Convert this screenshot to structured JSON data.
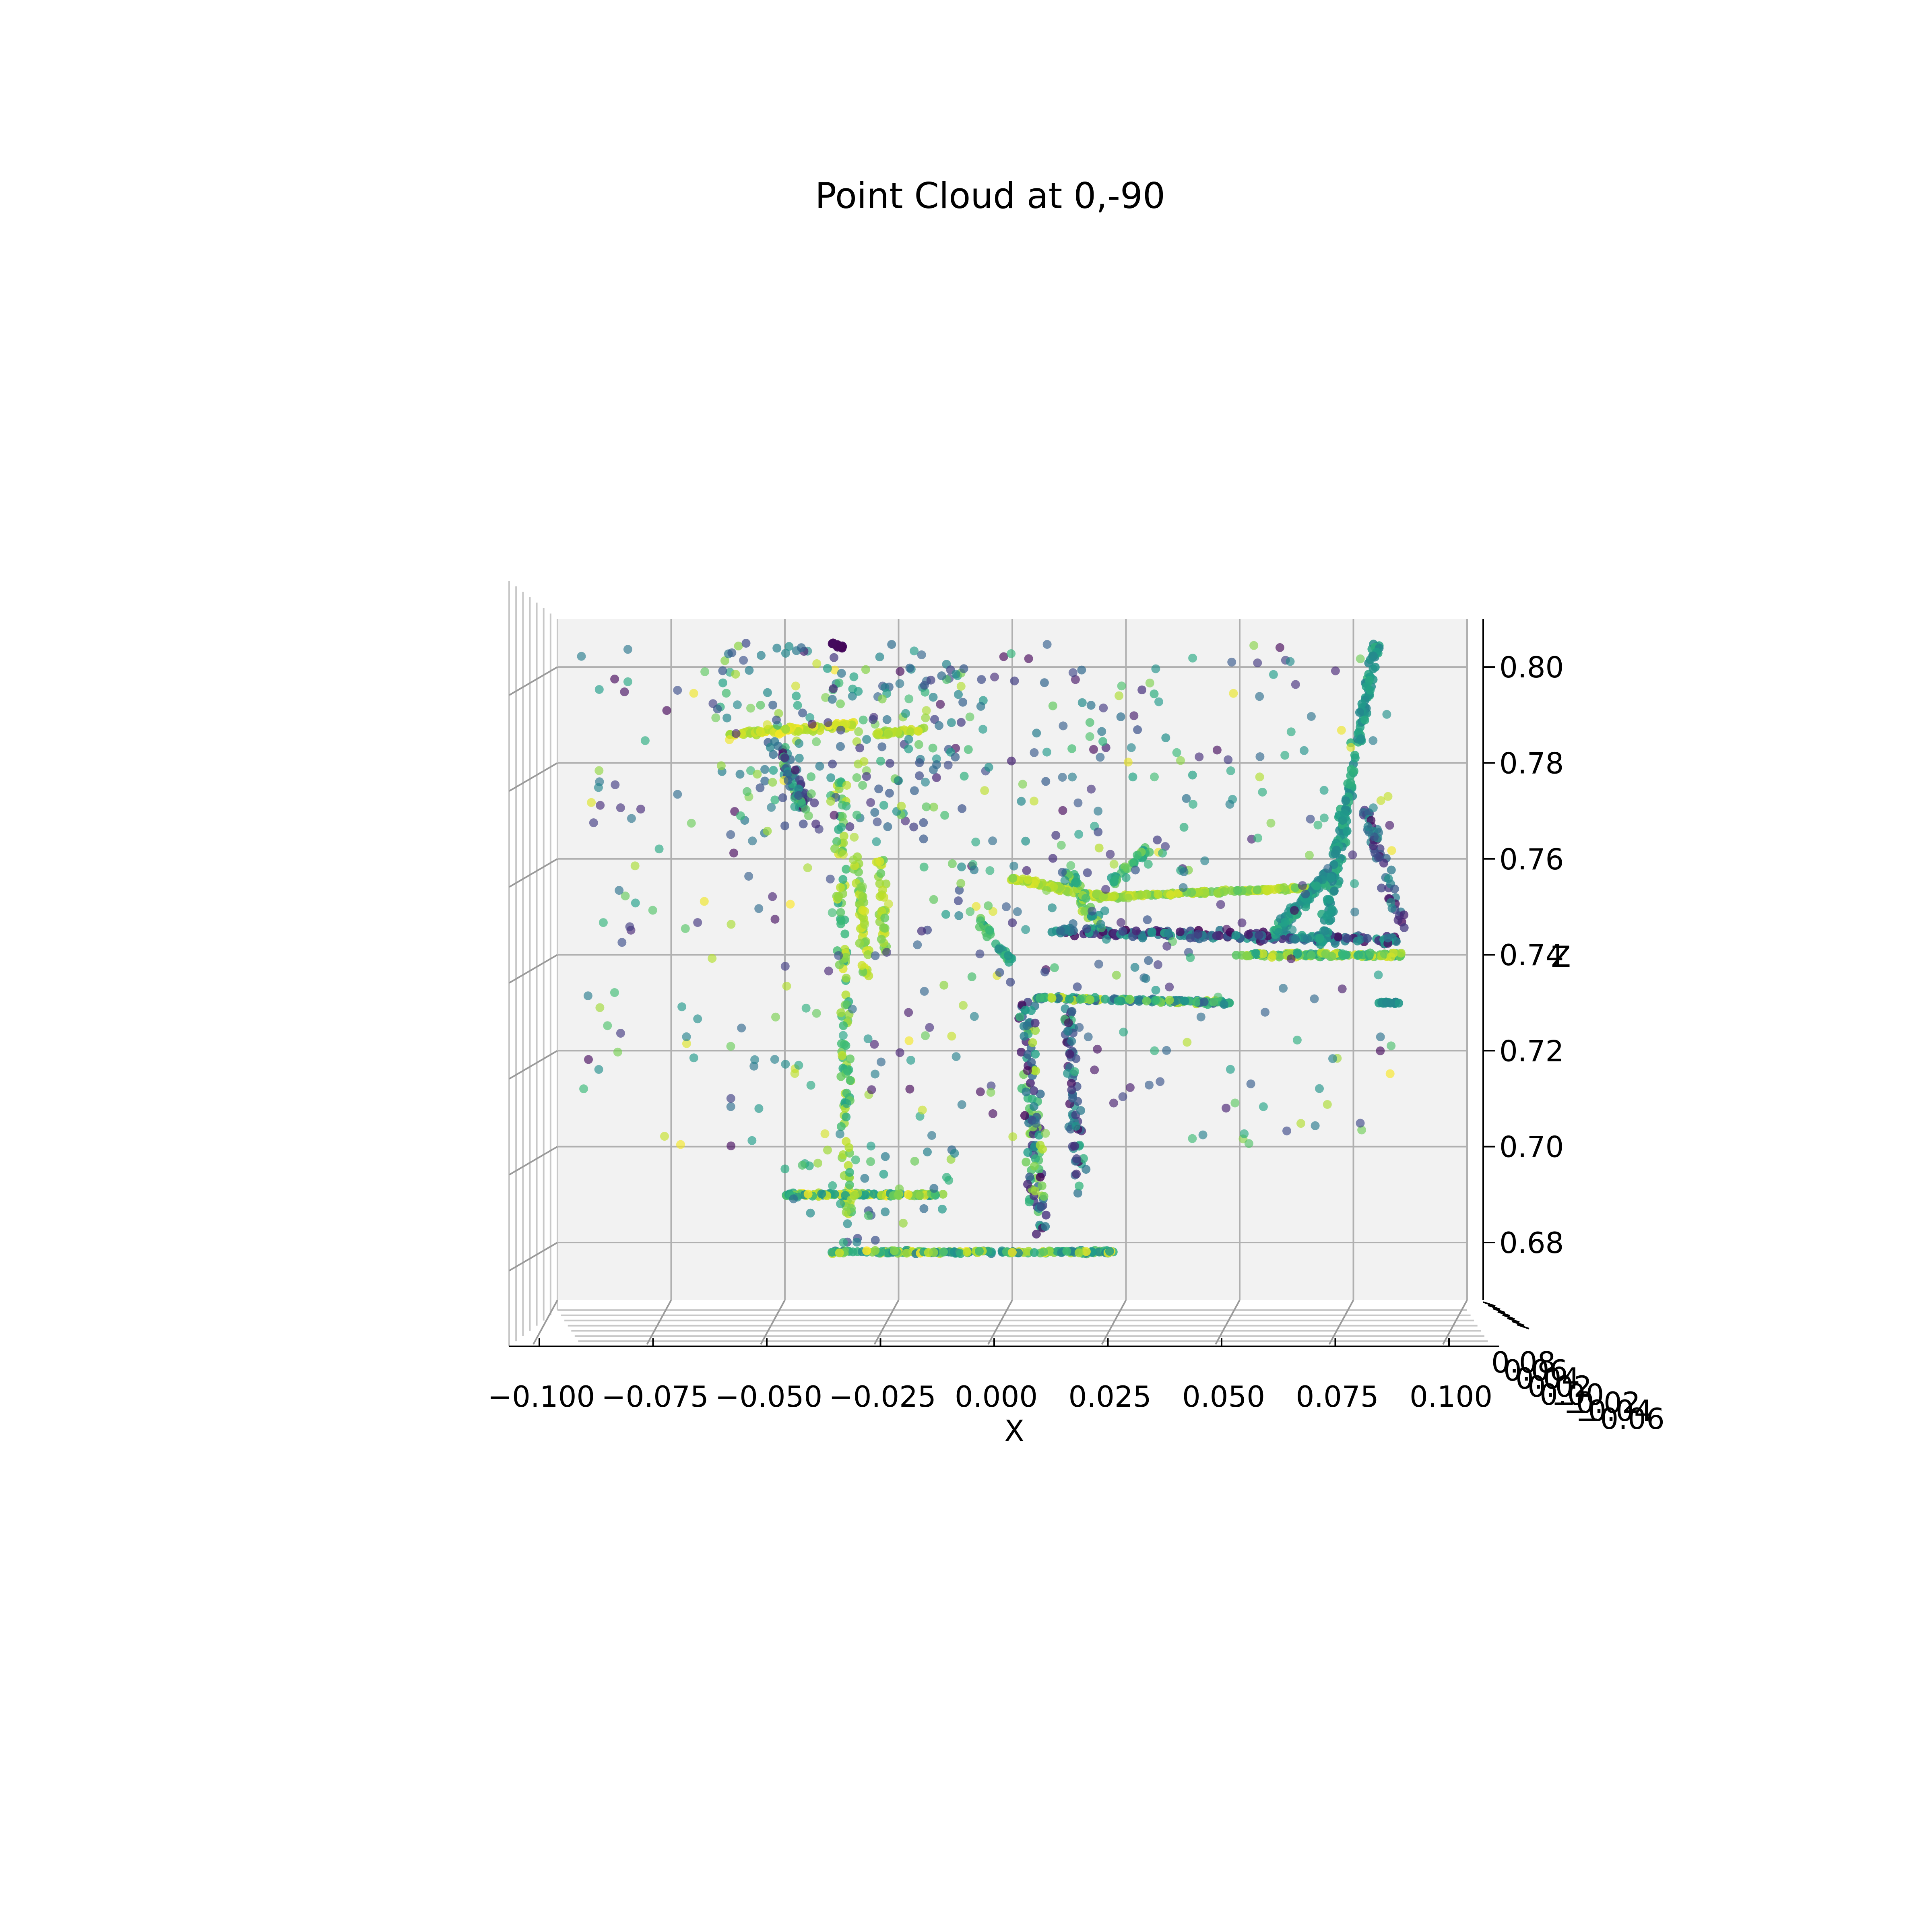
{
  "chart_data": {
    "type": "scatter",
    "title": "Point Cloud at  0,-90",
    "projection": "3d",
    "view": {
      "elev": 0,
      "azim": -90
    },
    "xlabel": "X",
    "zlabel": "Z",
    "xlim": [
      -0.1,
      0.1
    ],
    "zlim": [
      0.668,
      0.81
    ],
    "x_ticks": [
      "−0.100",
      "−0.075",
      "−0.050",
      "−0.025",
      "0.000",
      "0.025",
      "0.050",
      "0.075",
      "0.100"
    ],
    "x_tick_values": [
      -0.1,
      -0.075,
      -0.05,
      -0.025,
      0.0,
      0.025,
      0.05,
      0.075,
      0.1
    ],
    "z_ticks": [
      "0.68",
      "0.70",
      "0.72",
      "0.74",
      "0.76",
      "0.78",
      "0.80"
    ],
    "z_tick_values": [
      0.68,
      0.7,
      0.72,
      0.74,
      0.76,
      0.78,
      0.8
    ],
    "y_ticks_overlapping": [
      "0.08",
      "0.06",
      "0.04",
      "0.02",
      "0.00",
      "−0.02",
      "−0.04",
      "−0.06"
    ],
    "grid": true,
    "colormap": "viridis",
    "pane_color": "#f2f2f2",
    "segments": [
      {
        "x0": -0.062,
        "z0": 0.786,
        "x1": -0.035,
        "z1": 0.788,
        "n": 90,
        "c": [
          0.85,
          1.0
        ],
        "j": 0.0015,
        "alpha": 0.85
      },
      {
        "x0": -0.03,
        "z0": 0.786,
        "x1": -0.02,
        "z1": 0.787,
        "n": 30,
        "c": [
          0.8,
          0.95
        ],
        "j": 0.001,
        "alpha": 0.85
      },
      {
        "x0": -0.038,
        "z0": 0.777,
        "x1": -0.036,
        "z1": 0.685,
        "n": 110,
        "c": [
          0.6,
          0.95
        ],
        "j": 0.0018,
        "alpha": 0.8
      },
      {
        "x0": -0.034,
        "z0": 0.76,
        "x1": -0.032,
        "z1": 0.735,
        "n": 50,
        "c": [
          0.75,
          0.95
        ],
        "j": 0.0015,
        "alpha": 0.8
      },
      {
        "x0": -0.029,
        "z0": 0.76,
        "x1": -0.028,
        "z1": 0.74,
        "n": 35,
        "c": [
          0.75,
          0.95
        ],
        "j": 0.0012,
        "alpha": 0.8
      },
      {
        "x0": -0.05,
        "z0": 0.69,
        "x1": -0.015,
        "z1": 0.69,
        "n": 110,
        "c": [
          0.5,
          1.0
        ],
        "j": 0.0008,
        "alpha": 0.85
      },
      {
        "x0": -0.04,
        "z0": 0.678,
        "x1": 0.022,
        "z1": 0.678,
        "n": 170,
        "c": [
          0.4,
          1.0
        ],
        "j": 0.0008,
        "alpha": 0.85
      },
      {
        "x0": 0.0,
        "z0": 0.756,
        "x1": 0.02,
        "z1": 0.752,
        "n": 80,
        "c": [
          0.8,
          0.95
        ],
        "j": 0.0012,
        "alpha": 0.85
      },
      {
        "x0": 0.02,
        "z0": 0.752,
        "x1": 0.065,
        "z1": 0.754,
        "n": 120,
        "c": [
          0.75,
          0.95
        ],
        "j": 0.0008,
        "alpha": 0.85
      },
      {
        "x0": 0.01,
        "z0": 0.745,
        "x1": 0.085,
        "z1": 0.743,
        "n": 200,
        "c": [
          0.0,
          0.6
        ],
        "j": 0.0022,
        "alpha": 0.85
      },
      {
        "x0": 0.05,
        "z0": 0.74,
        "x1": 0.085,
        "z1": 0.74,
        "n": 120,
        "c": [
          0.55,
          0.95
        ],
        "j": 0.0012,
        "alpha": 0.85
      },
      {
        "x0": 0.005,
        "z0": 0.731,
        "x1": 0.048,
        "z1": 0.73,
        "n": 120,
        "c": [
          0.3,
          0.95
        ],
        "j": 0.0009,
        "alpha": 0.85
      },
      {
        "x0": 0.003,
        "z0": 0.73,
        "x1": 0.006,
        "z1": 0.682,
        "n": 110,
        "c": [
          0.0,
          0.9
        ],
        "j": 0.0028,
        "alpha": 0.8
      },
      {
        "x0": 0.012,
        "z0": 0.731,
        "x1": 0.015,
        "z1": 0.69,
        "n": 70,
        "c": [
          0.0,
          0.7
        ],
        "j": 0.0022,
        "alpha": 0.75
      },
      {
        "x0": 0.068,
        "z0": 0.742,
        "x1": 0.08,
        "z1": 0.805,
        "n": 160,
        "c": [
          0.45,
          0.65
        ],
        "j": 0.0018,
        "alpha": 0.85
      },
      {
        "x0": 0.058,
        "z0": 0.745,
        "x1": 0.07,
        "z1": 0.757,
        "n": 100,
        "c": [
          0.45,
          0.65
        ],
        "j": 0.0022,
        "alpha": 0.8
      },
      {
        "x0": 0.078,
        "z0": 0.77,
        "x1": 0.086,
        "z1": 0.745,
        "n": 50,
        "c": [
          0.0,
          0.55
        ],
        "j": 0.002,
        "alpha": 0.75
      },
      {
        "x0": 0.08,
        "z0": 0.73,
        "x1": 0.085,
        "z1": 0.73,
        "n": 15,
        "c": [
          0.45,
          0.6
        ],
        "j": 0.0005,
        "alpha": 0.9
      },
      {
        "x0": -0.052,
        "z0": 0.784,
        "x1": -0.045,
        "z1": 0.77,
        "n": 60,
        "c": [
          0.0,
          0.8
        ],
        "j": 0.003,
        "alpha": 0.75
      },
      {
        "x0": -0.04,
        "z0": 0.805,
        "x1": -0.037,
        "z1": 0.804,
        "n": 15,
        "c": [
          0.0,
          0.05
        ],
        "j": 0.0008,
        "alpha": 0.95
      },
      {
        "x0": -0.008,
        "z0": 0.748,
        "x1": 0.0,
        "z1": 0.738,
        "n": 30,
        "c": [
          0.5,
          0.8
        ],
        "j": 0.0012,
        "alpha": 0.8
      },
      {
        "x0": 0.012,
        "z0": 0.758,
        "x1": 0.018,
        "z1": 0.747,
        "n": 40,
        "c": [
          0.5,
          0.9
        ],
        "j": 0.002,
        "alpha": 0.8
      },
      {
        "x0": 0.022,
        "z0": 0.755,
        "x1": 0.03,
        "z1": 0.762,
        "n": 30,
        "c": [
          0.55,
          0.8
        ],
        "j": 0.0015,
        "alpha": 0.8
      }
    ],
    "scatter_regions": [
      {
        "x": [
          -0.095,
          0.085
        ],
        "z": [
          0.7,
          0.805
        ],
        "n": 360,
        "c": [
          0.0,
          1.0
        ],
        "alpha": 0.65
      },
      {
        "x": [
          -0.065,
          -0.01
        ],
        "z": [
          0.765,
          0.805
        ],
        "n": 160,
        "c": [
          0.1,
          0.9
        ],
        "alpha": 0.7
      },
      {
        "x": [
          -0.02,
          0.04
        ],
        "z": [
          0.73,
          0.8
        ],
        "n": 90,
        "c": [
          0.1,
          0.9
        ],
        "alpha": 0.7
      },
      {
        "x": [
          -0.05,
          -0.01
        ],
        "z": [
          0.68,
          0.7
        ],
        "n": 40,
        "c": [
          0.2,
          0.9
        ],
        "alpha": 0.7
      }
    ]
  }
}
